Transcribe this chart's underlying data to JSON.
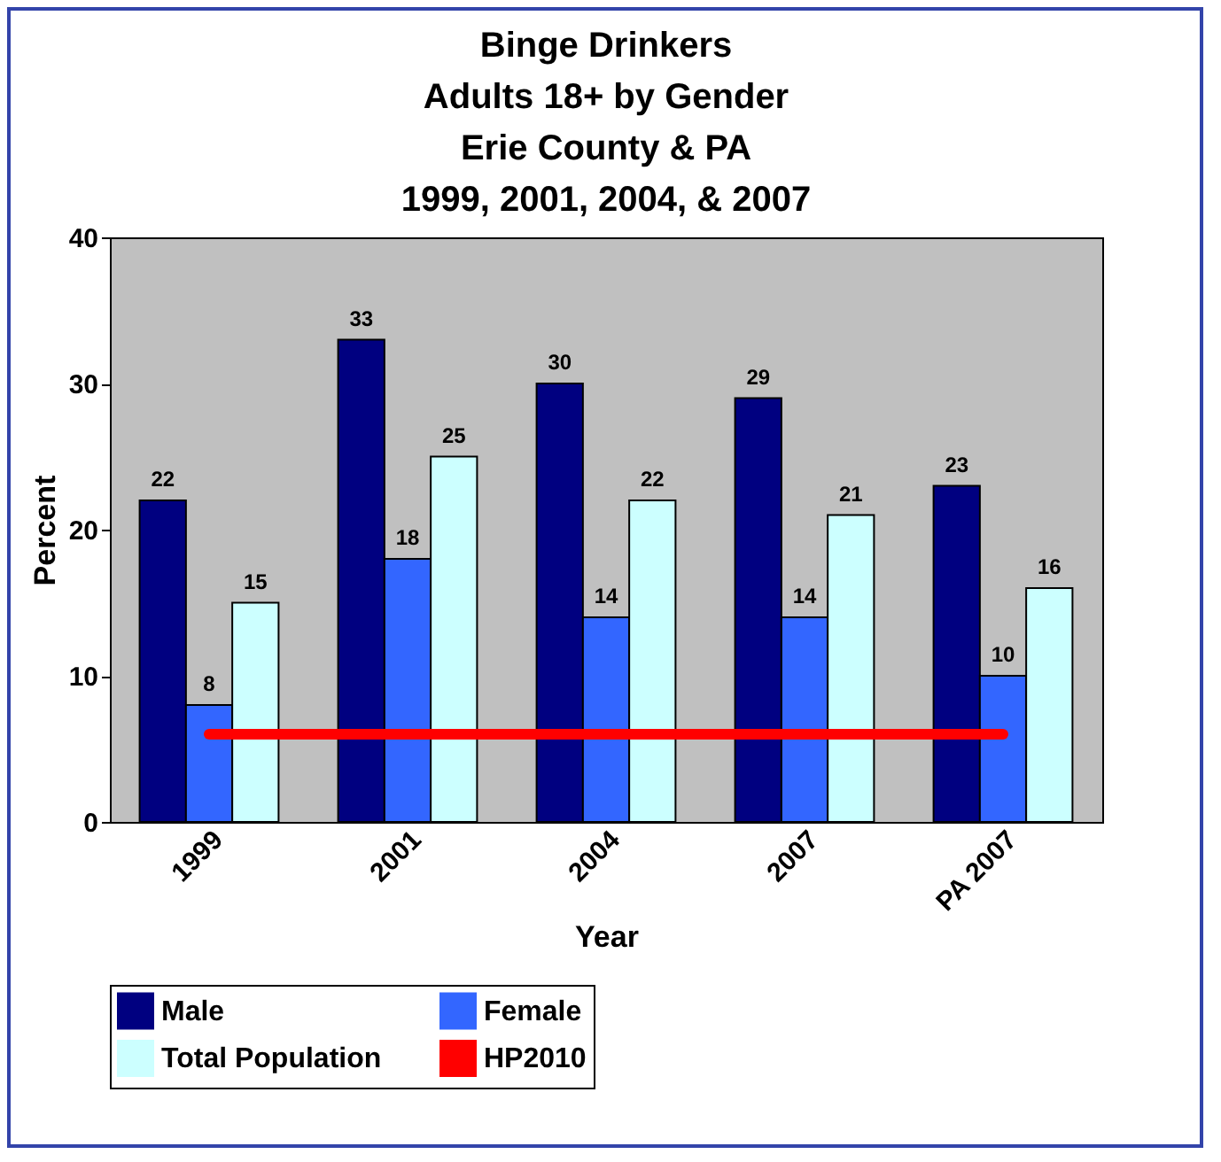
{
  "chart_data": {
    "type": "bar",
    "title": "Binge Drinkers\nAdults 18+ by Gender\nErie County & PA\n1999, 2001, 2004, & 2007",
    "xlabel": "Year",
    "ylabel": "Percent",
    "categories": [
      "1999",
      "2001",
      "2004",
      "2007",
      "PA 2007"
    ],
    "series": [
      {
        "name": "Male",
        "color": "#000080",
        "values": [
          22,
          33,
          30,
          29,
          23
        ],
        "value_labels": [
          "22",
          "33",
          "30",
          "29",
          "23"
        ]
      },
      {
        "name": "Female",
        "color": "#3366ff",
        "values": [
          8,
          18,
          14,
          14,
          10
        ],
        "value_labels": [
          "8",
          "18",
          "14",
          "14",
          "10"
        ]
      },
      {
        "name": "Total Population",
        "color": "#ccffff",
        "values": [
          15,
          25,
          22,
          21,
          16
        ],
        "value_labels": [
          "15",
          "25",
          "22",
          "21",
          "16"
        ]
      },
      {
        "name": "HP2010",
        "color": "#ff0000",
        "type": "line",
        "values": [
          6,
          6,
          6,
          6,
          6
        ]
      }
    ],
    "ylim": [
      0,
      40
    ],
    "yticks": [
      0,
      10,
      20,
      30,
      40
    ],
    "legend": "bottom",
    "grid": false
  }
}
